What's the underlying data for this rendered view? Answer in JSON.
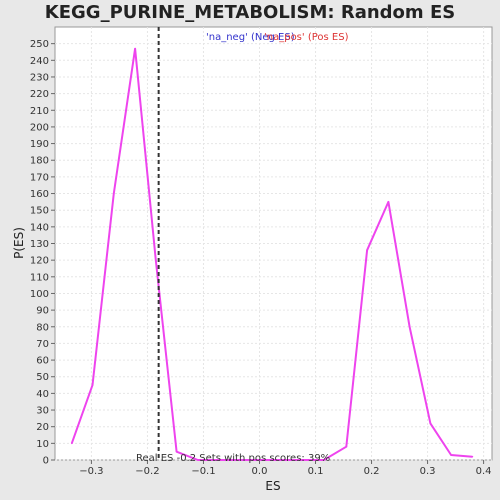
{
  "chart_data": {
    "type": "line",
    "title": "KEGG_PURINE_METABOLISM: Random ES distribution",
    "xlabel": "ES",
    "ylabel": "P(ES)",
    "xlim": [
      -0.365,
      0.415
    ],
    "ylim": [
      0,
      260
    ],
    "x_ticks": [
      -0.3,
      -0.2,
      -0.1,
      0.0,
      0.1,
      0.2,
      0.3,
      0.4
    ],
    "x_tick_labels": [
      "−0.3",
      "−0.2",
      "−0.1",
      "0.0",
      "0.1",
      "0.2",
      "0.3",
      "0.4"
    ],
    "y_ticks": [
      0,
      10,
      20,
      30,
      40,
      50,
      60,
      70,
      80,
      90,
      100,
      110,
      120,
      130,
      140,
      150,
      160,
      170,
      180,
      190,
      200,
      210,
      220,
      230,
      240,
      250
    ],
    "grid": true,
    "series": [
      {
        "name": "",
        "color": "#ee44ee",
        "x": [
          -0.335,
          -0.298,
          -0.26,
          -0.222,
          -0.185,
          -0.148,
          -0.11,
          0.115,
          0.155,
          0.192,
          0.23,
          0.268,
          0.305,
          0.342,
          0.38
        ],
        "y": [
          10,
          45,
          160,
          247,
          120,
          5,
          0,
          0,
          8,
          126,
          155,
          80,
          22,
          3,
          2
        ]
      }
    ],
    "real_es_line": {
      "x": -0.18,
      "color": "#333333"
    },
    "legend": [
      {
        "label": "'na_neg' (Neg ES)",
        "color": "#3333cc"
      },
      {
        "label": "'na_pos' (Pos ES)",
        "color": "#dd3333"
      }
    ],
    "legend_placement": "top-center",
    "annotation": "Real ES -0.2   Sets with pos scores: 39%"
  }
}
